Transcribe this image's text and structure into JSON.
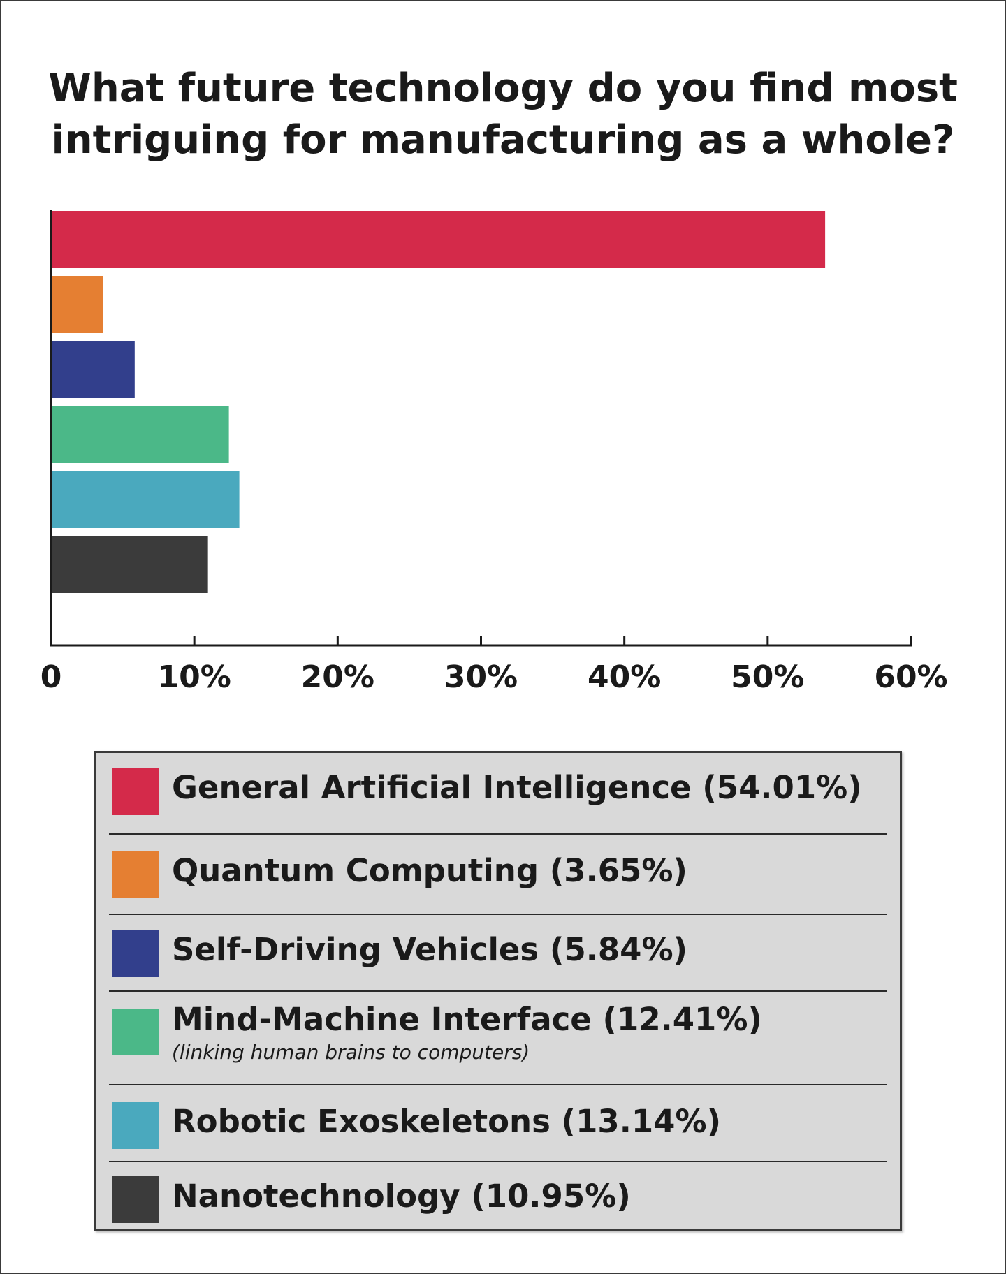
{
  "chart_data": {
    "type": "bar",
    "orientation": "horizontal",
    "title": "What future technology do you find most intriguing for manufacturing as a whole?",
    "title_lines": [
      "What future technology do you find most",
      "intriguing for manufacturing as a whole?"
    ],
    "categories": [
      "General Artificial Intelligence",
      "Quantum Computing",
      "Self-Driving Vehicles",
      "Mind-Machine Interface",
      "Robotic Exoskeletons",
      "Nanotechnology"
    ],
    "values": [
      54.01,
      3.65,
      5.84,
      12.41,
      13.14,
      10.95
    ],
    "colors": [
      "#d42a4a",
      "#e57f32",
      "#323f8c",
      "#4bb888",
      "#4aa9be",
      "#3b3b3b"
    ],
    "xlim": [
      0,
      60
    ],
    "xticks": [
      0,
      10,
      20,
      30,
      40,
      50,
      60
    ],
    "xtick_labels": [
      "0",
      "10%",
      "20%",
      "30%",
      "40%",
      "50%",
      "60%"
    ],
    "xlabel": "",
    "ylabel": "",
    "grid": false,
    "legend_placement": "bottom",
    "legend": [
      {
        "label": "General Artificial Intelligence (54.01%)",
        "note": ""
      },
      {
        "label": "Quantum Computing (3.65%)",
        "note": ""
      },
      {
        "label": "Self-Driving Vehicles (5.84%)",
        "note": ""
      },
      {
        "label": "Mind-Machine Interface (12.41%)",
        "note": "(linking human brains to computers)"
      },
      {
        "label": "Robotic Exoskeletons (13.14%)",
        "note": ""
      },
      {
        "label": "Nanotechnology (10.95%)",
        "note": ""
      }
    ]
  }
}
